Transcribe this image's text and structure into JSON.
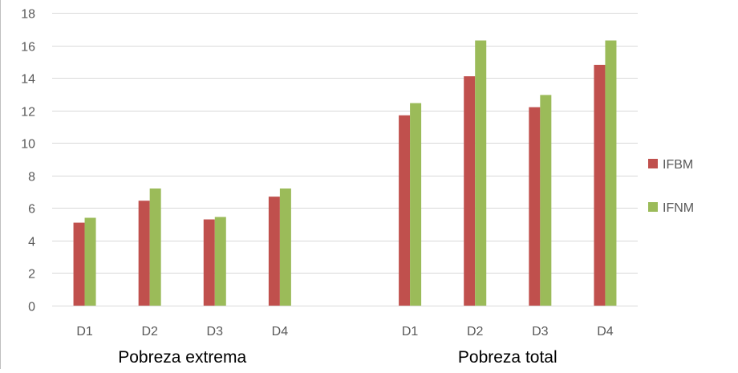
{
  "chart_data": {
    "type": "bar",
    "title": "",
    "xlabel": "",
    "ylabel": "",
    "ylim": [
      0,
      18
    ],
    "yticks": [
      0,
      2,
      4,
      6,
      8,
      10,
      12,
      14,
      16,
      18
    ],
    "grid": true,
    "legend_position": "right",
    "groups": [
      {
        "label": "Pobreza extrema",
        "categories": [
          "D1",
          "D2",
          "D3",
          "D4"
        ]
      },
      {
        "label": "Pobreza total",
        "categories": [
          "D1",
          "D2",
          "D3",
          "D4"
        ]
      }
    ],
    "series": [
      {
        "name": "IFBM",
        "color": "#c0504d",
        "values": [
          5.1,
          6.45,
          5.3,
          6.7,
          11.7,
          14.1,
          12.2,
          14.8
        ]
      },
      {
        "name": "IFNM",
        "color": "#9bbb59",
        "values": [
          5.4,
          7.2,
          5.45,
          7.2,
          12.45,
          16.3,
          12.95,
          16.3
        ]
      }
    ]
  }
}
